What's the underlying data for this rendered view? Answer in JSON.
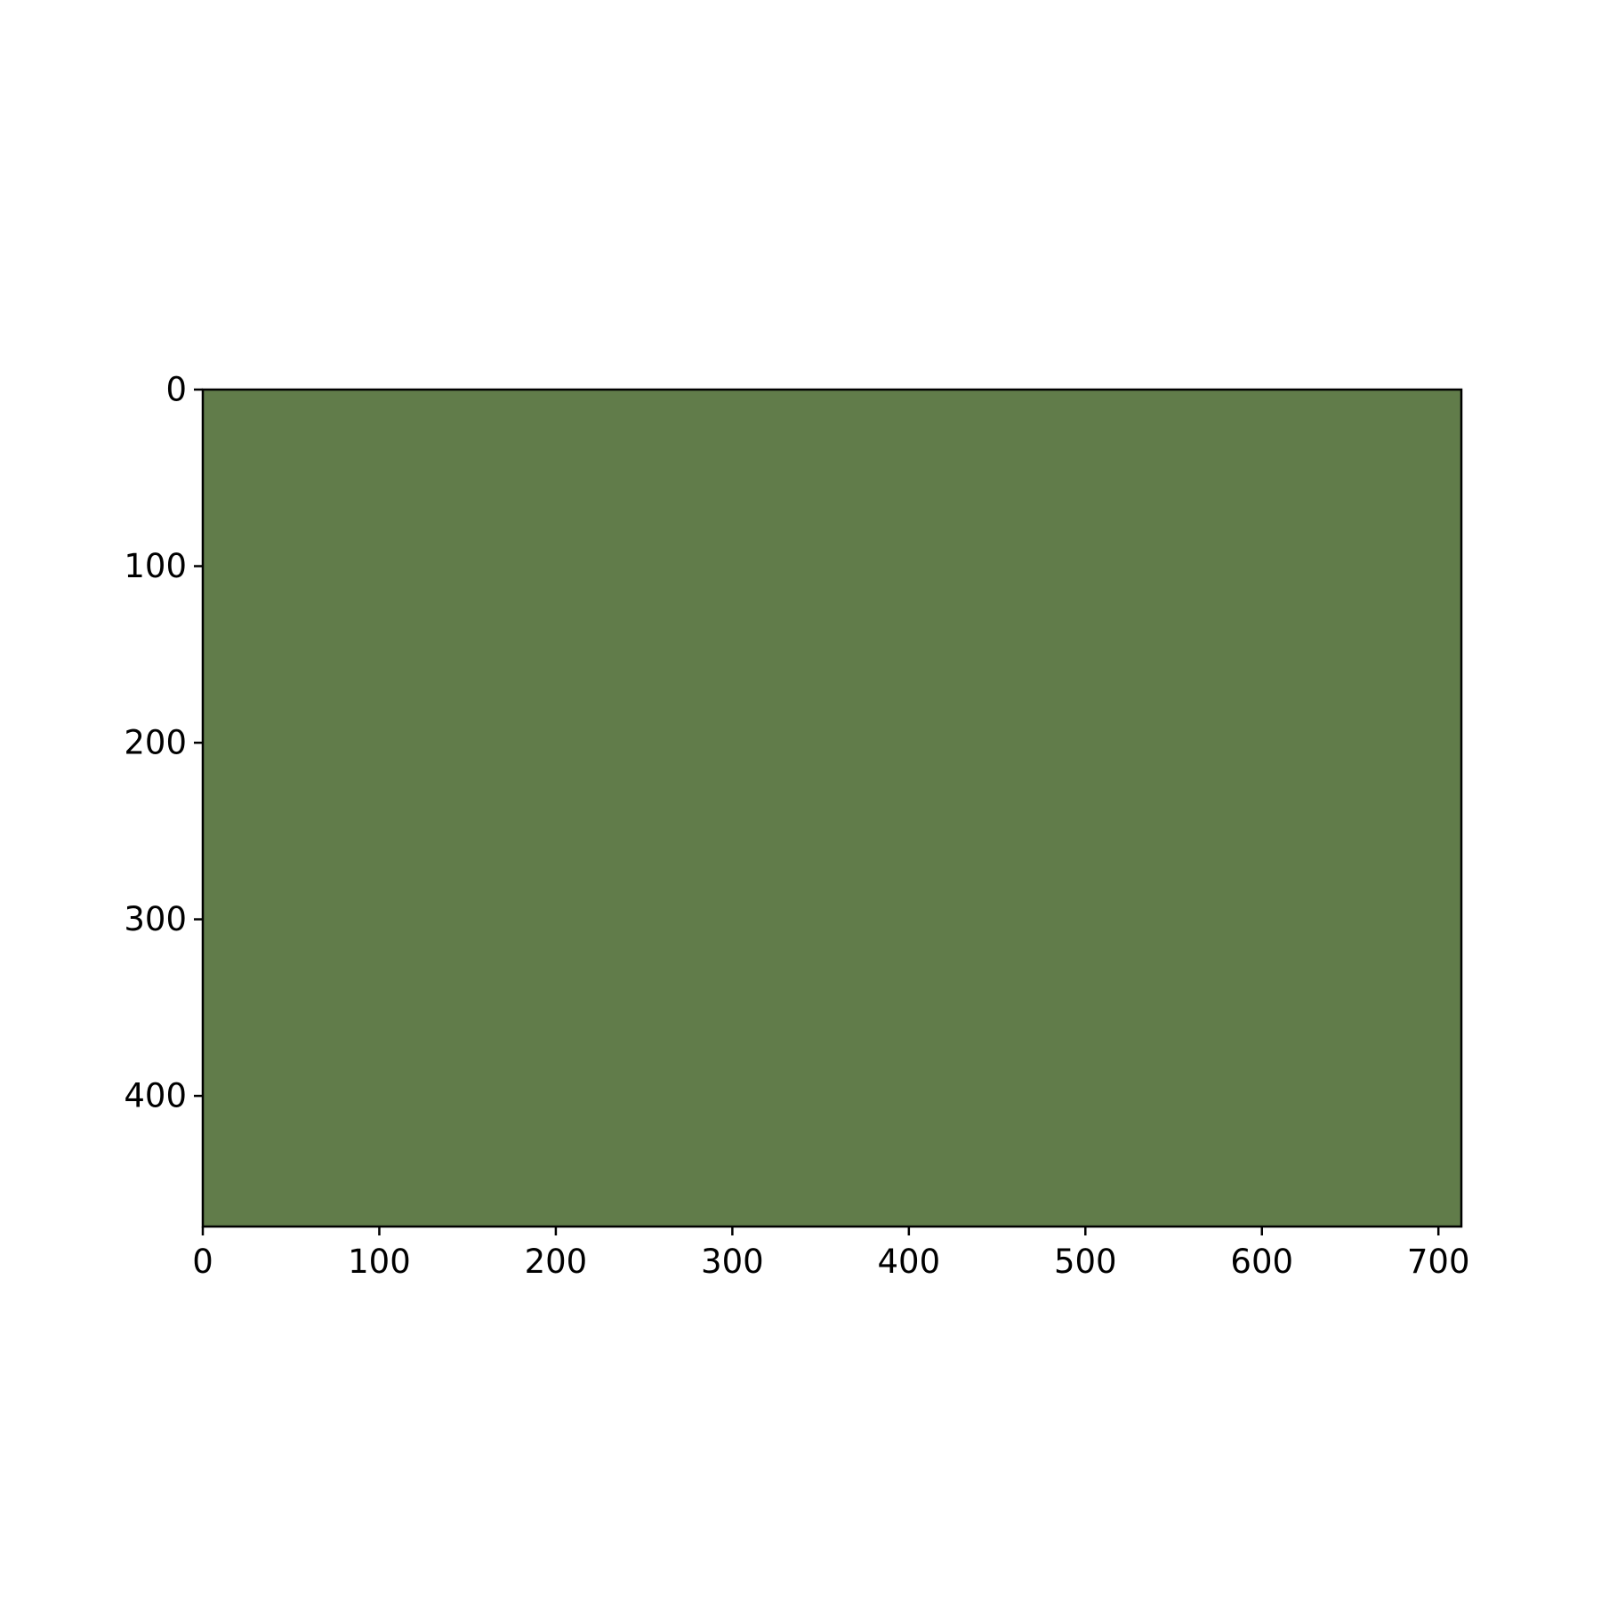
{
  "chart_data": {
    "type": "heatmap",
    "title": "",
    "xlabel": "",
    "ylabel": "",
    "image_width": 713,
    "image_height": 474,
    "xlim": [
      0,
      713
    ],
    "ylim": [
      474,
      0
    ],
    "y_inverted": true,
    "fill_color": "#617c4a",
    "x_ticks": [
      0,
      100,
      200,
      300,
      400,
      500,
      600,
      700
    ],
    "x_tick_labels": [
      "0",
      "100",
      "200",
      "300",
      "400",
      "500",
      "600",
      "700"
    ],
    "y_ticks": [
      0,
      100,
      200,
      300,
      400
    ],
    "y_tick_labels": [
      "0",
      "100",
      "200",
      "300",
      "400"
    ],
    "grid": false,
    "legend": "none"
  },
  "colors": {
    "axis": "#000000",
    "background": "#ffffff"
  }
}
